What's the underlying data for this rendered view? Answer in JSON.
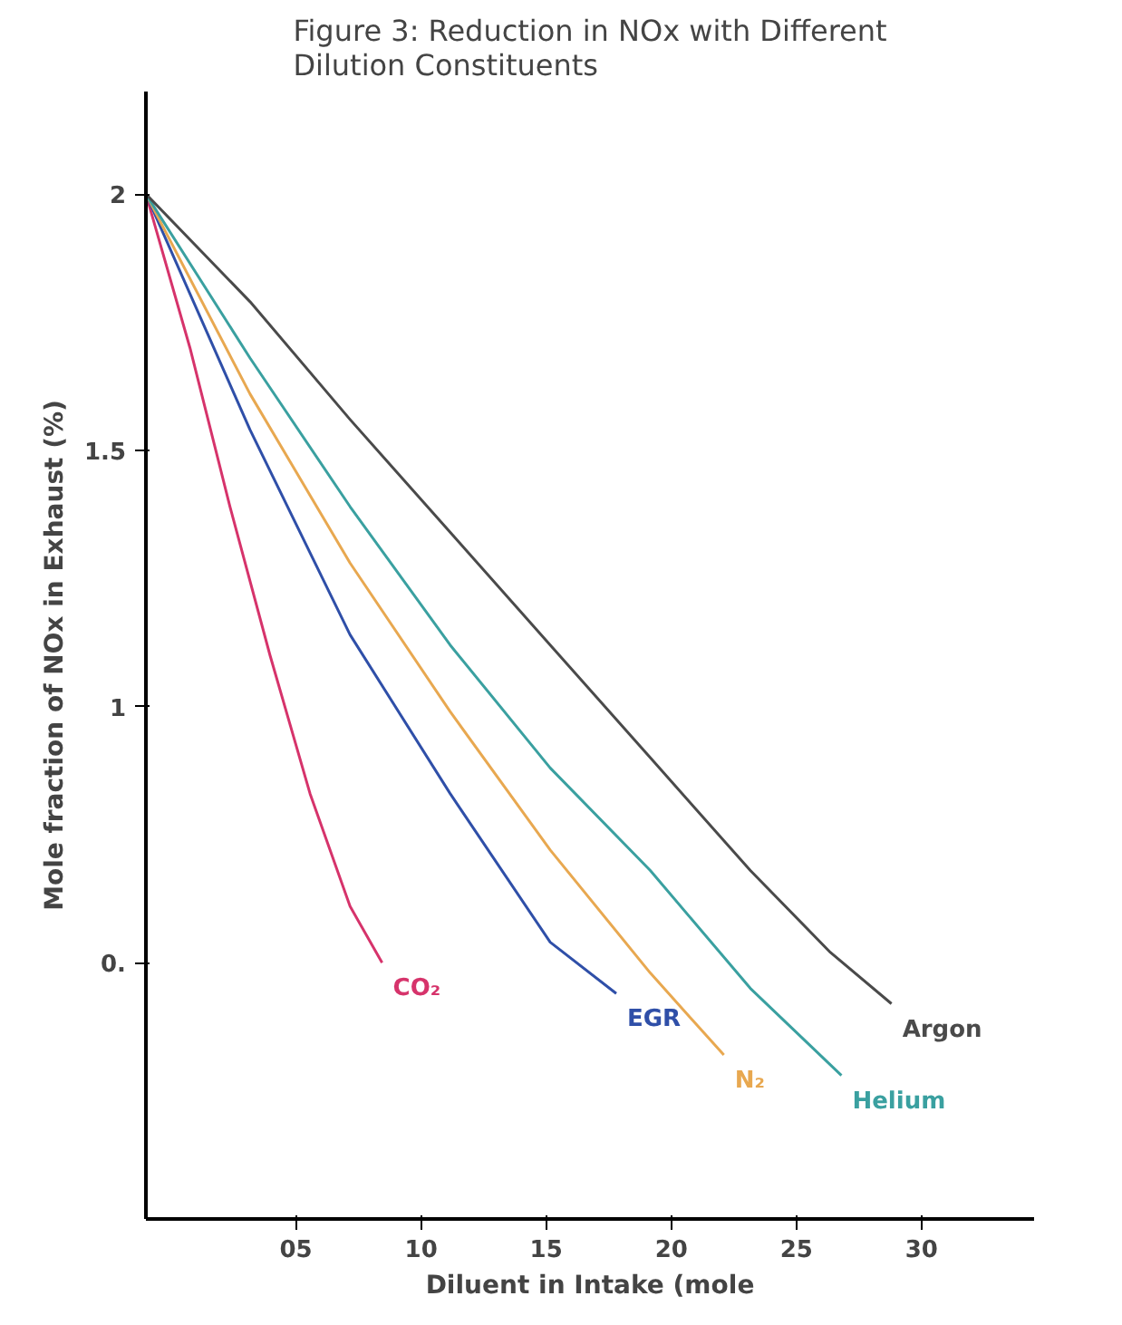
{
  "chart_data": {
    "type": "line",
    "title": "Figure 3: Reduction in NOx with Different\nDilution Constituents",
    "xlabel": "Diluent in Intake (mole",
    "ylabel": "Mole fraction of NOx in Exhaust (%)",
    "xlim": [
      -1,
      34.5
    ],
    "ylim": [
      0,
      2.2
    ],
    "xticks": [
      {
        "value": 5,
        "label": "05"
      },
      10,
      15,
      20,
      25,
      30
    ],
    "yticks": [
      {
        "value": 0.5,
        "label": "0."
      },
      1,
      1.5,
      2
    ],
    "grid": false,
    "marker": "none",
    "line_style": "solid",
    "series": [
      {
        "name": "CO₂",
        "color": "#d6336b",
        "x": [
          -1,
          0.76,
          2.36,
          3.96,
          5.56,
          7.16,
          8.44
        ],
        "values": [
          2,
          1.7,
          1.39,
          1.1,
          0.83,
          0.61,
          0.5
        ]
      },
      {
        "name": "EGR",
        "color": "#2f4fa8",
        "x": [
          -1,
          3.16,
          7.16,
          11.16,
          15.16,
          17.8
        ],
        "values": [
          2,
          1.54,
          1.14,
          0.83,
          0.54,
          0.44
        ]
      },
      {
        "name": "N₂",
        "color": "#e8a850",
        "x": [
          -1,
          3.16,
          7.16,
          11.16,
          15.16,
          19.16,
          22.1
        ],
        "values": [
          2,
          1.61,
          1.28,
          0.99,
          0.72,
          0.48,
          0.32
        ]
      },
      {
        "name": "Helium",
        "color": "#3aa0a0",
        "x": [
          -1,
          3.16,
          7.16,
          11.16,
          15.16,
          19.16,
          23.16,
          26.8
        ],
        "values": [
          2,
          1.68,
          1.39,
          1.12,
          0.88,
          0.68,
          0.45,
          0.28
        ]
      },
      {
        "name": "Argon",
        "color": "#4a4a4a",
        "x": [
          -1,
          3.16,
          7.16,
          11.16,
          15.16,
          19.16,
          23.16,
          26.36,
          28.8
        ],
        "values": [
          2,
          1.79,
          1.56,
          1.34,
          1.12,
          0.9,
          0.68,
          0.52,
          0.42
        ]
      }
    ]
  }
}
